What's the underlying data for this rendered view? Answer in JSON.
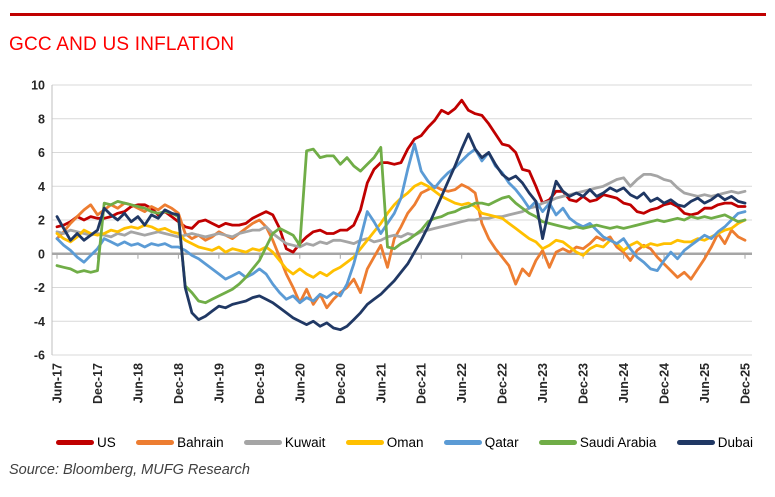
{
  "header": {
    "title": "GCC AND US INFLATION",
    "title_color": "#FF0000",
    "rule_color": "#C00000"
  },
  "source": {
    "text": "Source: Bloomberg, MUFG Research"
  },
  "chart_data": {
    "type": "line",
    "title": "GCC AND US INFLATION",
    "xlabel": "",
    "ylabel": "",
    "ylim": [
      -6,
      10
    ],
    "y_ticks": [
      10,
      8,
      6,
      4,
      2,
      0,
      -2,
      -4,
      -6
    ],
    "grid": "horizontal",
    "legend_position": "bottom",
    "x_unit": "monthly from Jun-2017 to Dec-2025",
    "x_tick_labels": [
      "Jun-17",
      "Dec-17",
      "Jun-18",
      "Dec-18",
      "Jun-19",
      "Dec-19",
      "Jun-20",
      "Dec-20",
      "Jun-21",
      "Dec-21",
      "Jun-22",
      "Dec-22",
      "Jun-23",
      "Dec-23",
      "Jun-24",
      "Dec-24",
      "Jun-25",
      "Dec-25"
    ],
    "axis_colors": {
      "gridline": "#D9D9D9",
      "zero_axis": "#A6A6A6",
      "axis_line": "#BFBFBF"
    },
    "series": [
      {
        "name": "US",
        "color": "#C00000",
        "values": [
          1.6,
          1.7,
          1.9,
          2.2,
          2.0,
          2.2,
          2.1,
          2.1,
          2.2,
          2.4,
          2.5,
          2.8,
          2.9,
          2.9,
          2.7,
          2.3,
          2.5,
          2.2,
          1.9,
          1.6,
          1.5,
          1.9,
          2.0,
          1.8,
          1.6,
          1.8,
          1.7,
          1.7,
          1.8,
          2.1,
          2.3,
          2.5,
          2.3,
          1.5,
          0.3,
          0.1,
          0.6,
          1.0,
          1.3,
          1.4,
          1.2,
          1.2,
          1.4,
          1.4,
          1.7,
          2.6,
          4.2,
          5.0,
          5.4,
          5.4,
          5.3,
          5.4,
          6.2,
          6.8,
          7.0,
          7.5,
          7.9,
          8.5,
          8.3,
          8.6,
          9.1,
          8.5,
          8.3,
          8.2,
          7.7,
          7.1,
          6.5,
          6.4,
          6.0,
          5.0,
          4.9,
          4.0,
          3.0,
          3.2,
          3.7,
          3.7,
          3.2,
          3.1,
          3.4,
          3.1,
          3.2,
          3.5,
          3.4,
          3.3,
          3.0,
          2.9,
          2.5,
          2.4,
          2.6,
          2.7,
          2.9,
          3.0,
          2.8,
          2.4,
          2.3,
          2.4,
          2.7,
          2.7,
          2.9,
          3.0,
          3.0,
          2.8,
          2.8
        ]
      },
      {
        "name": "Bahrain",
        "color": "#ED7D31",
        "values": [
          0.9,
          1.3,
          1.8,
          2.2,
          2.6,
          2.9,
          2.3,
          2.6,
          2.9,
          2.7,
          3.0,
          2.9,
          2.7,
          2.5,
          2.8,
          2.6,
          2.9,
          2.7,
          2.4,
          1.2,
          0.9,
          1.1,
          0.8,
          1.0,
          1.3,
          1.1,
          0.9,
          1.2,
          1.5,
          1.8,
          2.0,
          1.6,
          0.8,
          -0.2,
          -1.2,
          -2.0,
          -2.9,
          -2.1,
          -3.0,
          -2.4,
          -3.2,
          -2.7,
          -2.3,
          -2.0,
          -1.5,
          -2.3,
          -0.9,
          -0.2,
          0.5,
          -0.8,
          0.9,
          1.6,
          2.4,
          2.9,
          3.6,
          3.8,
          4.0,
          3.8,
          3.7,
          3.8,
          4.1,
          3.9,
          3.6,
          1.8,
          0.9,
          0.3,
          -0.2,
          -0.7,
          -1.8,
          -0.9,
          -1.3,
          -0.4,
          0.2,
          -0.8,
          0.1,
          0.3,
          0.1,
          0.4,
          0.3,
          0.6,
          1.0,
          0.8,
          1.0,
          0.4,
          0.1,
          -0.4,
          0.2,
          0.5,
          0.3,
          -0.2,
          -0.6,
          -1.0,
          -1.4,
          -1.1,
          -1.5,
          -0.9,
          -0.3,
          0.4,
          1.2,
          0.6,
          1.4,
          1.0,
          0.8
        ]
      },
      {
        "name": "Kuwait",
        "color": "#A5A5A5",
        "values": [
          1.3,
          1.2,
          1.4,
          1.3,
          1.2,
          1.1,
          1.2,
          1.1,
          1.0,
          1.2,
          1.1,
          1.3,
          1.2,
          1.1,
          1.2,
          1.3,
          1.2,
          1.1,
          1.0,
          1.1,
          1.2,
          1.1,
          1.0,
          1.1,
          1.2,
          1.1,
          1.0,
          1.2,
          1.3,
          1.4,
          1.4,
          1.6,
          1.2,
          0.9,
          0.6,
          0.5,
          0.4,
          0.6,
          0.5,
          0.7,
          0.6,
          0.8,
          0.8,
          0.7,
          0.6,
          0.8,
          0.9,
          0.7,
          0.8,
          1.0,
          1.1,
          1.0,
          1.2,
          1.1,
          1.3,
          1.4,
          1.5,
          1.6,
          1.7,
          1.8,
          1.9,
          2.0,
          2.0,
          2.1,
          2.1,
          2.2,
          2.2,
          2.3,
          2.4,
          2.5,
          2.7,
          2.8,
          3.0,
          3.1,
          3.3,
          3.4,
          3.5,
          3.6,
          3.7,
          3.8,
          3.9,
          4.0,
          4.2,
          4.4,
          4.5,
          4.0,
          4.4,
          4.7,
          4.7,
          4.6,
          4.4,
          4.3,
          3.9,
          3.6,
          3.5,
          3.4,
          3.5,
          3.4,
          3.5,
          3.6,
          3.7,
          3.6,
          3.7
        ]
      },
      {
        "name": "Oman",
        "color": "#FFC000",
        "values": [
          1.2,
          0.9,
          0.7,
          1.0,
          1.4,
          1.2,
          1.1,
          1.2,
          1.4,
          1.3,
          1.5,
          1.6,
          1.5,
          1.7,
          1.6,
          1.4,
          1.5,
          1.3,
          1.2,
          0.8,
          0.6,
          0.4,
          0.3,
          0.2,
          0.4,
          0.1,
          0.3,
          0.2,
          0.1,
          0.3,
          0.2,
          0.4,
          0.1,
          -0.4,
          -0.9,
          -1.2,
          -0.9,
          -1.2,
          -1.4,
          -1.1,
          -1.3,
          -1.0,
          -0.8,
          -0.5,
          -0.2,
          0.3,
          0.8,
          1.3,
          1.8,
          2.4,
          2.9,
          3.3,
          3.6,
          4.0,
          4.2,
          4.0,
          3.7,
          3.4,
          3.2,
          3.0,
          2.9,
          3.0,
          2.8,
          2.4,
          2.3,
          2.2,
          2.1,
          1.8,
          1.5,
          1.2,
          0.9,
          0.7,
          0.3,
          0.5,
          0.8,
          0.7,
          0.4,
          0.1,
          -0.1,
          0.3,
          0.5,
          0.4,
          0.8,
          0.6,
          0.2,
          0.5,
          0.7,
          0.4,
          0.6,
          0.5,
          0.6,
          0.6,
          0.8,
          0.7,
          0.7,
          0.9,
          0.8,
          1.0,
          1.2,
          1.4,
          1.5,
          1.8,
          2.0
        ]
      },
      {
        "name": "Qatar",
        "color": "#5B9BD5",
        "values": [
          0.9,
          0.5,
          0.2,
          -0.2,
          -0.5,
          -0.1,
          0.3,
          0.9,
          0.7,
          0.5,
          0.7,
          0.5,
          0.6,
          0.4,
          0.6,
          0.5,
          0.6,
          0.4,
          0.4,
          0.2,
          -0.1,
          -0.3,
          -0.6,
          -0.9,
          -1.2,
          -1.5,
          -1.3,
          -1.1,
          -1.4,
          -1.2,
          -0.9,
          -1.2,
          -1.8,
          -2.3,
          -2.7,
          -2.5,
          -2.9,
          -2.6,
          -2.8,
          -2.4,
          -2.6,
          -2.3,
          -2.5,
          -1.8,
          -0.6,
          0.9,
          2.5,
          1.9,
          1.2,
          1.8,
          2.4,
          3.3,
          5.0,
          6.5,
          4.9,
          4.3,
          3.9,
          4.4,
          4.8,
          5.1,
          5.5,
          5.9,
          6.2,
          5.5,
          6.0,
          5.2,
          4.8,
          4.2,
          3.8,
          3.3,
          2.7,
          3.1,
          2.5,
          3.0,
          2.3,
          2.7,
          2.1,
          1.8,
          1.6,
          1.8,
          1.4,
          1.0,
          0.8,
          0.6,
          0.9,
          0.3,
          -0.2,
          -0.5,
          -0.9,
          -1.0,
          -0.4,
          0.1,
          -0.3,
          0.2,
          0.5,
          0.8,
          1.1,
          0.9,
          1.3,
          1.6,
          2.0,
          2.4,
          2.5
        ]
      },
      {
        "name": "Saudi Arabia",
        "color": "#70AD47",
        "values": [
          -0.7,
          -0.8,
          -0.9,
          -1.1,
          -1.0,
          -1.1,
          -1.0,
          3.0,
          2.9,
          3.1,
          3.0,
          2.9,
          2.8,
          2.7,
          2.5,
          2.4,
          2.5,
          2.4,
          2.2,
          -1.9,
          -2.3,
          -2.8,
          -2.9,
          -2.7,
          -2.5,
          -2.3,
          -2.1,
          -1.8,
          -1.4,
          -0.9,
          -0.4,
          0.4,
          1.2,
          1.5,
          1.3,
          1.1,
          0.5,
          6.1,
          6.2,
          5.7,
          5.8,
          5.8,
          5.3,
          5.7,
          5.2,
          4.9,
          5.3,
          5.7,
          6.3,
          0.4,
          0.3,
          0.6,
          0.8,
          1.1,
          1.4,
          1.9,
          2.1,
          2.2,
          2.4,
          2.5,
          2.7,
          2.8,
          3.0,
          3.0,
          2.9,
          3.1,
          3.3,
          3.4,
          3.0,
          2.7,
          2.4,
          2.2,
          1.9,
          1.8,
          1.7,
          1.6,
          1.5,
          1.6,
          1.5,
          1.6,
          1.7,
          1.6,
          1.5,
          1.6,
          1.5,
          1.6,
          1.7,
          1.8,
          1.9,
          2.0,
          1.9,
          2.0,
          2.1,
          2.0,
          2.2,
          2.1,
          2.2,
          2.1,
          2.2,
          2.3,
          2.1,
          1.9,
          2.0
        ]
      },
      {
        "name": "Dubai",
        "color": "#203864",
        "values": [
          2.2,
          1.5,
          0.8,
          1.2,
          0.8,
          1.1,
          1.4,
          2.7,
          2.3,
          2.0,
          2.4,
          1.9,
          2.2,
          1.7,
          2.3,
          2.1,
          2.6,
          2.4,
          2.3,
          -2.0,
          -3.5,
          -3.9,
          -3.7,
          -3.4,
          -3.1,
          -3.2,
          -3.0,
          -2.9,
          -2.8,
          -2.6,
          -2.5,
          -2.7,
          -2.9,
          -3.2,
          -3.5,
          -3.8,
          -4.0,
          -4.2,
          -4.0,
          -4.3,
          -4.1,
          -4.4,
          -4.5,
          -4.3,
          -3.9,
          -3.5,
          -3.0,
          -2.7,
          -2.4,
          -2.0,
          -1.6,
          -1.1,
          -0.6,
          0.1,
          0.8,
          1.6,
          2.5,
          3.4,
          4.3,
          5.2,
          6.2,
          7.1,
          6.2,
          5.7,
          6.0,
          5.3,
          4.7,
          4.4,
          4.6,
          4.2,
          3.6,
          3.1,
          0.9,
          2.8,
          4.3,
          3.7,
          3.4,
          3.6,
          3.4,
          3.8,
          3.4,
          3.6,
          3.9,
          3.7,
          3.9,
          3.5,
          3.3,
          3.6,
          3.1,
          3.3,
          3.0,
          3.2,
          2.9,
          2.8,
          3.1,
          3.3,
          3.0,
          3.2,
          3.5,
          3.2,
          3.4,
          3.1,
          3.0
        ]
      }
    ]
  }
}
